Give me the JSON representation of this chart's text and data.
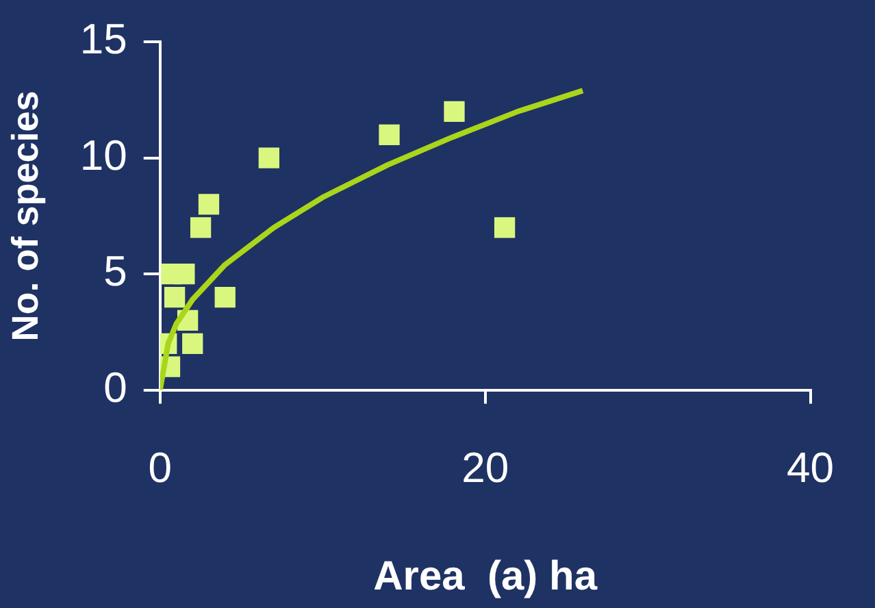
{
  "chart_data": {
    "type": "scatter",
    "xlabel": "Area  (a) ha",
    "ylabel": "No. of species",
    "xlim": [
      0,
      40
    ],
    "xticks": [
      0,
      20,
      40
    ],
    "ylim": [
      0,
      15
    ],
    "yticks": [
      0,
      5,
      10,
      15
    ],
    "grid": false,
    "legend": false,
    "marker": "square",
    "series": [
      {
        "color": "#d9f77f",
        "x": [
          3.0,
          2.5,
          0.7,
          1.5,
          4.0,
          0.9,
          1.7,
          0.4,
          2.0,
          0.6,
          6.7,
          14.1,
          18.1,
          21.2
        ],
        "values": [
          8,
          7,
          5,
          5,
          4,
          4,
          3,
          2,
          2,
          1,
          10,
          11,
          12,
          7
        ]
      },
      {
        "type": "line",
        "color": "#a9d61a",
        "marker": "none",
        "x": [
          0,
          0.5,
          1,
          2,
          4,
          7,
          10,
          14,
          18,
          22,
          26
        ],
        "values": [
          0,
          2.0,
          2.85,
          3.9,
          5.4,
          7.0,
          8.3,
          9.7,
          10.9,
          12.0,
          12.9
        ]
      }
    ]
  }
}
